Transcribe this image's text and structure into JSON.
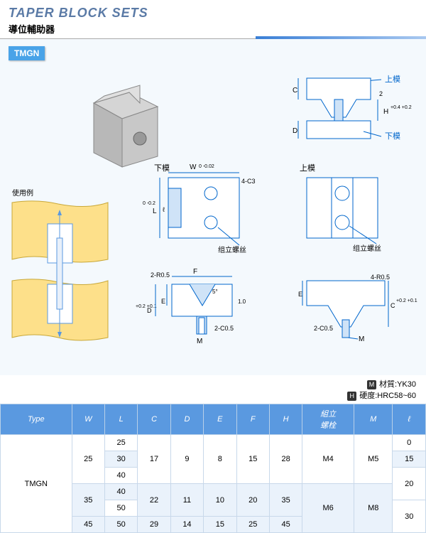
{
  "title_en": "TAPER BLOCK SETS",
  "title_zh": "導位輔助器",
  "product_tag": "TMGN",
  "usage_label": "使用例",
  "labels": {
    "upper_die": "上模",
    "lower_die": "下模",
    "assembly_screw": "组立螺丝",
    "assembly_bolt": "組立\n螺栓"
  },
  "dims": {
    "c": "C",
    "d": "D",
    "h": "H",
    "w": "W",
    "l": "L",
    "e": "E",
    "f": "F",
    "m": "M",
    "t": "ℓ",
    "w_tol": "0\n-0.02",
    "l_tol": "0\n-0.2",
    "d_tol": "+0.2\n+0.1",
    "h_tol": "+0.4\n+0.2",
    "c_tol": "+0.2\n+0.1",
    "chamfer_4c3": "4-C3",
    "r_2r05": "2-R0.5",
    "r_4r05": "4-R0.5",
    "c_2c05": "2-C0.5",
    "five": "5°",
    "one": "1.0",
    "two": "2"
  },
  "material": {
    "mark": "M",
    "label": "材質:",
    "value": "YK30"
  },
  "hardness": {
    "mark": "H",
    "label": "硬度:",
    "value": "HRC58~60"
  },
  "table": {
    "headers": [
      "Type",
      "W",
      "L",
      "C",
      "D",
      "E",
      "F",
      "H",
      "組立\n螺栓",
      "M",
      "ℓ"
    ],
    "rows": [
      [
        "TMGN",
        "25",
        "25",
        "17",
        "9",
        "8",
        "15",
        "28",
        "M4",
        "M5",
        "0"
      ],
      [
        "",
        "",
        "30",
        "",
        "",
        "",
        "",
        "",
        "",
        "",
        "15"
      ],
      [
        "",
        "",
        "40",
        "",
        "",
        "",
        "",
        "",
        "",
        "",
        "20"
      ],
      [
        "",
        "35",
        "40",
        "22",
        "11",
        "10",
        "20",
        "35",
        "M6",
        "M8",
        ""
      ],
      [
        "",
        "",
        "50",
        "",
        "",
        "",
        "",
        "",
        "",
        "",
        "30"
      ],
      [
        "",
        "45",
        "50",
        "29",
        "14",
        "15",
        "25",
        "45",
        "",
        "",
        ""
      ]
    ],
    "rowspans": {
      "0": {
        "0": 6,
        "1": 3,
        "3": 3,
        "4": 3,
        "5": 3,
        "6": 3,
        "7": 3,
        "8": 3,
        "9": 3
      },
      "2": {
        "10": 2
      },
      "3": {
        "1": 2,
        "3": 2,
        "4": 2,
        "5": 2,
        "6": 2,
        "7": 2,
        "8": 3,
        "9": 3
      },
      "4": {
        "10": 2
      }
    }
  }
}
